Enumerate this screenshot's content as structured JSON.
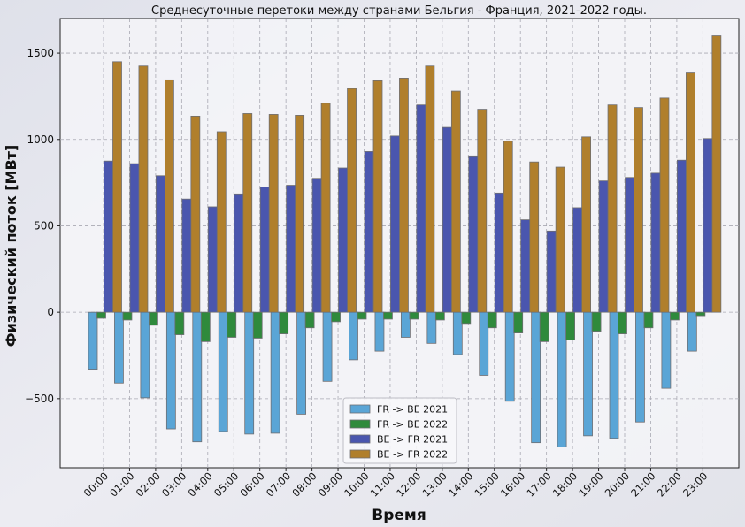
{
  "chart_data": {
    "type": "bar",
    "title": "Среднесуточные перетоки между странами Бельгия - Франция, 2021-2022 годы.",
    "xlabel": "Время",
    "ylabel": "Физический поток [МВт]",
    "ylim": [
      -900,
      1700
    ],
    "yticks": [
      -500,
      0,
      500,
      1000,
      1500
    ],
    "grid": true,
    "legend_position": "bottom-center",
    "categories": [
      "00:00",
      "01:00",
      "02:00",
      "03:00",
      "04:00",
      "05:00",
      "06:00",
      "07:00",
      "08:00",
      "09:00",
      "10:00",
      "11:00",
      "12:00",
      "13:00",
      "14:00",
      "15:00",
      "16:00",
      "17:00",
      "18:00",
      "19:00",
      "20:00",
      "21:00",
      "22:00",
      "23:00"
    ],
    "series": [
      {
        "name": "FR -> BE 2021",
        "color": "#5aa5d6",
        "values": [
          -330,
          -410,
          -495,
          -675,
          -750,
          -690,
          -705,
          -700,
          -590,
          -400,
          -275,
          -225,
          -145,
          -180,
          -245,
          -365,
          -515,
          -755,
          -780,
          -715,
          -730,
          -635,
          -440,
          -225
        ]
      },
      {
        "name": "FR -> BE 2022",
        "color": "#2f8a3c",
        "values": [
          -35,
          -45,
          -75,
          -130,
          -170,
          -145,
          -150,
          -125,
          -90,
          -55,
          -40,
          -40,
          -40,
          -45,
          -65,
          -90,
          -120,
          -170,
          -160,
          -110,
          -125,
          -90,
          -45,
          -20
        ]
      },
      {
        "name": "BE -> FR 2021",
        "color": "#4a56ae",
        "values": [
          875,
          860,
          790,
          655,
          610,
          685,
          725,
          735,
          775,
          835,
          930,
          1020,
          1200,
          1070,
          905,
          690,
          535,
          470,
          605,
          760,
          780,
          805,
          880,
          1005
        ]
      },
      {
        "name": "BE -> FR 2022",
        "color": "#b07f2c",
        "values": [
          1450,
          1425,
          1345,
          1135,
          1045,
          1150,
          1145,
          1140,
          1210,
          1295,
          1340,
          1355,
          1425,
          1280,
          1175,
          990,
          870,
          840,
          1015,
          1200,
          1185,
          1240,
          1390,
          1600
        ]
      }
    ]
  }
}
